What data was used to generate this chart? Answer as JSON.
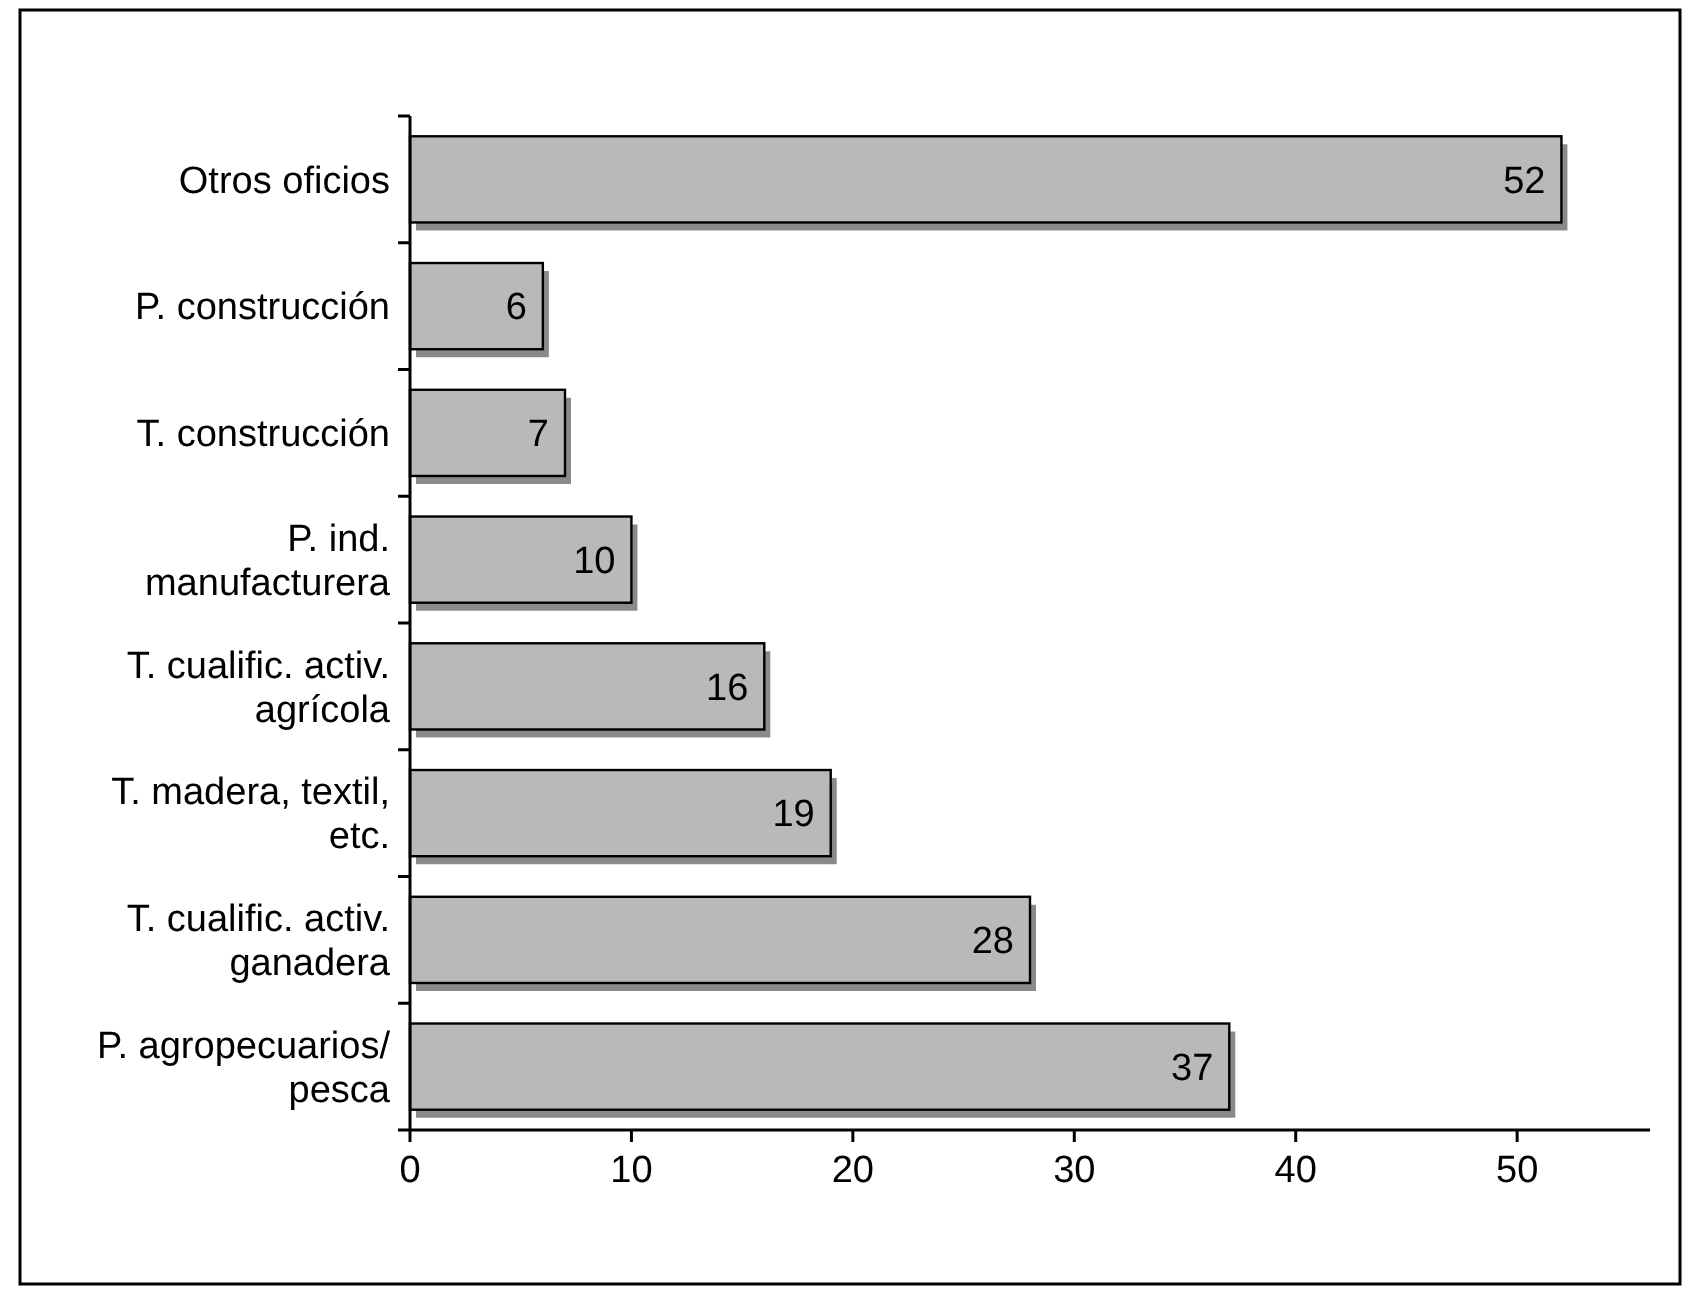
{
  "chart_data": {
    "type": "bar",
    "orientation": "horizontal",
    "categories": [
      "Otros oficios",
      "P. construcción",
      "T. construcción",
      "P. ind.\nmanufacturera",
      "T. cualific. activ.\nagrícola",
      "T. madera, textil,\netc.",
      "T. cualific. activ.\nganadera",
      "P. agropecuarios/\npesca"
    ],
    "values": [
      52,
      6,
      7,
      10,
      16,
      19,
      28,
      37
    ],
    "color": "#b9b9b9",
    "xlim": [
      0,
      56
    ],
    "xticks": [
      0,
      10,
      20,
      30,
      40,
      50
    ],
    "data_labels": true,
    "grid": false
  }
}
